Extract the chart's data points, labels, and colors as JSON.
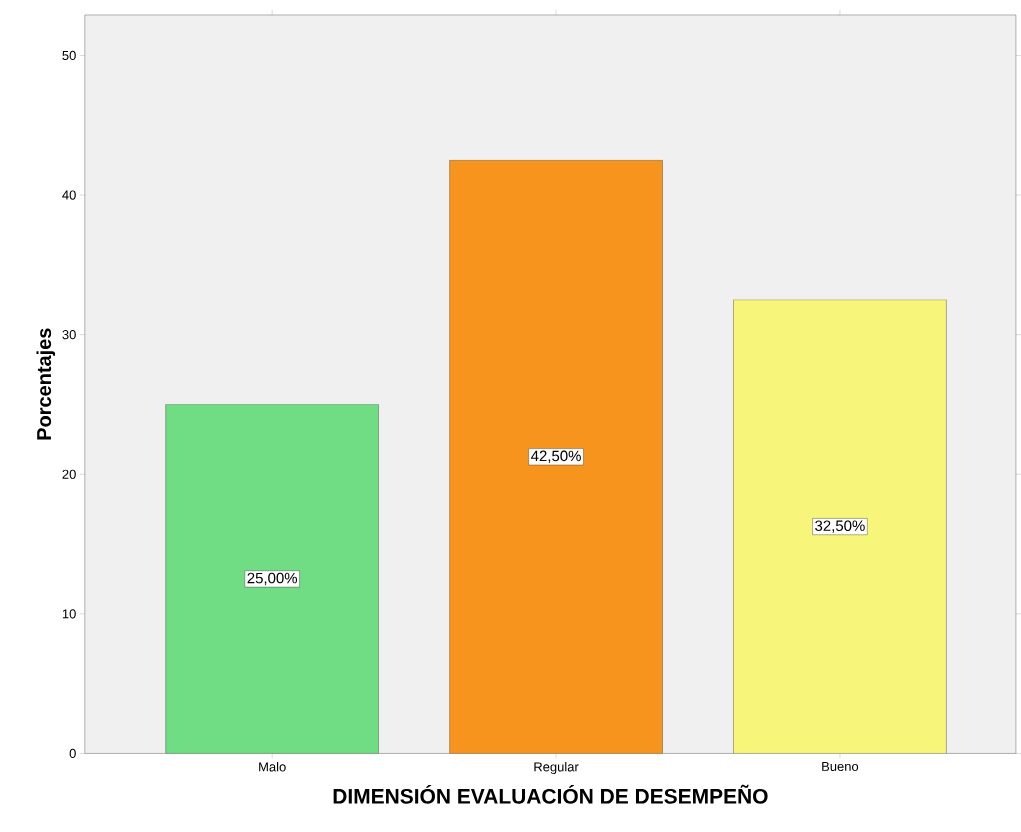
{
  "chart_data": {
    "type": "bar",
    "xlabel": "DIMENSIÓN EVALUACIÓN DE DESEMPEÑO",
    "ylabel": "Porcentajes",
    "categories": [
      "Malo",
      "Regular",
      "Bueno"
    ],
    "values": [
      25,
      42.5,
      32.5
    ],
    "colors": [
      "#70dc84",
      "#f7941d",
      "#f8f67a"
    ],
    "value_labels": [
      "25,00%",
      "42,50%",
      "32,50%"
    ],
    "ylim": [
      0,
      52.9
    ],
    "yticks": [
      0,
      10,
      20,
      30,
      40,
      50
    ]
  }
}
